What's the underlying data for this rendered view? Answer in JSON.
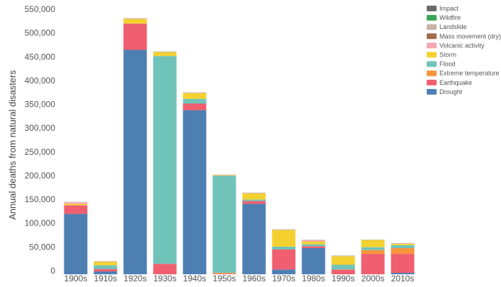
{
  "chart_data": {
    "type": "bar",
    "stacked": true,
    "title": "",
    "xlabel": "",
    "ylabel": "Annual deaths from natural disasters",
    "ylim": [
      0,
      550000
    ],
    "yticks": [
      0,
      50000,
      100000,
      150000,
      200000,
      250000,
      300000,
      350000,
      400000,
      450000,
      500000,
      550000
    ],
    "ytick_labels": [
      "0",
      "50,000",
      "100,000",
      "150,000",
      "200,000",
      "250,000",
      "300,000",
      "350,000",
      "400,000",
      "450,000",
      "500,000",
      "550,000"
    ],
    "grid": false,
    "legend_position": "top-right",
    "legend_order": [
      "Impact",
      "Wildfire",
      "Landslide",
      "Mass movement (dry)",
      "Volcanic activity",
      "Storm",
      "Flood",
      "Extreme temperature",
      "Earthquake",
      "Drought"
    ],
    "categories": [
      "1900s",
      "1910s",
      "1920s",
      "1930s",
      "1940s",
      "1950s",
      "1960s",
      "1970s",
      "1980s",
      "1990s",
      "2000s",
      "2010s"
    ],
    "series": [
      {
        "name": "Drought",
        "color": "#4e7fb3",
        "values": [
          127000,
          6000,
          472000,
          0,
          345000,
          0,
          148000,
          10000,
          55000,
          0,
          0,
          3000
        ]
      },
      {
        "name": "Earthquake",
        "color": "#ef5f6f",
        "values": [
          18000,
          5000,
          55000,
          22000,
          14000,
          1000,
          6000,
          42000,
          4000,
          10000,
          43000,
          40000
        ]
      },
      {
        "name": "Extreme temperature",
        "color": "#f7963a",
        "values": [
          0,
          0,
          0,
          0,
          0,
          2000,
          0,
          0,
          0,
          0,
          8000,
          12000
        ]
      },
      {
        "name": "Flood",
        "color": "#6fc3b9",
        "values": [
          0,
          8000,
          0,
          437000,
          10000,
          204000,
          3000,
          6000,
          4000,
          10000,
          6000,
          6000
        ]
      },
      {
        "name": "Storm",
        "color": "#f4d12f",
        "values": [
          3000,
          7000,
          10000,
          8000,
          12000,
          1000,
          13000,
          35000,
          6000,
          18000,
          15000,
          3000
        ]
      },
      {
        "name": "Volcanic activity",
        "color": "#f4a6b3",
        "values": [
          3000,
          0,
          0,
          0,
          0,
          0,
          0,
          0,
          2500,
          0,
          0,
          0
        ]
      },
      {
        "name": "Mass movement (dry)",
        "color": "#a06a4c",
        "values": [
          0,
          0,
          0,
          0,
          0,
          0,
          0,
          0,
          0,
          0,
          0,
          0
        ]
      },
      {
        "name": "Landslide",
        "color": "#c9b3a5",
        "values": [
          1000,
          1500,
          1500,
          1500,
          1500,
          1500,
          1500,
          1500,
          1000,
          1500,
          1000,
          1500
        ]
      },
      {
        "name": "Wildfire",
        "color": "#3aa757",
        "values": [
          0,
          0,
          0,
          0,
          0,
          0,
          0,
          0,
          0,
          0,
          0,
          0
        ]
      },
      {
        "name": "Impact",
        "color": "#6b6b6b",
        "values": [
          0,
          0,
          0,
          0,
          0,
          0,
          0,
          0,
          0,
          0,
          0,
          0
        ]
      }
    ]
  }
}
